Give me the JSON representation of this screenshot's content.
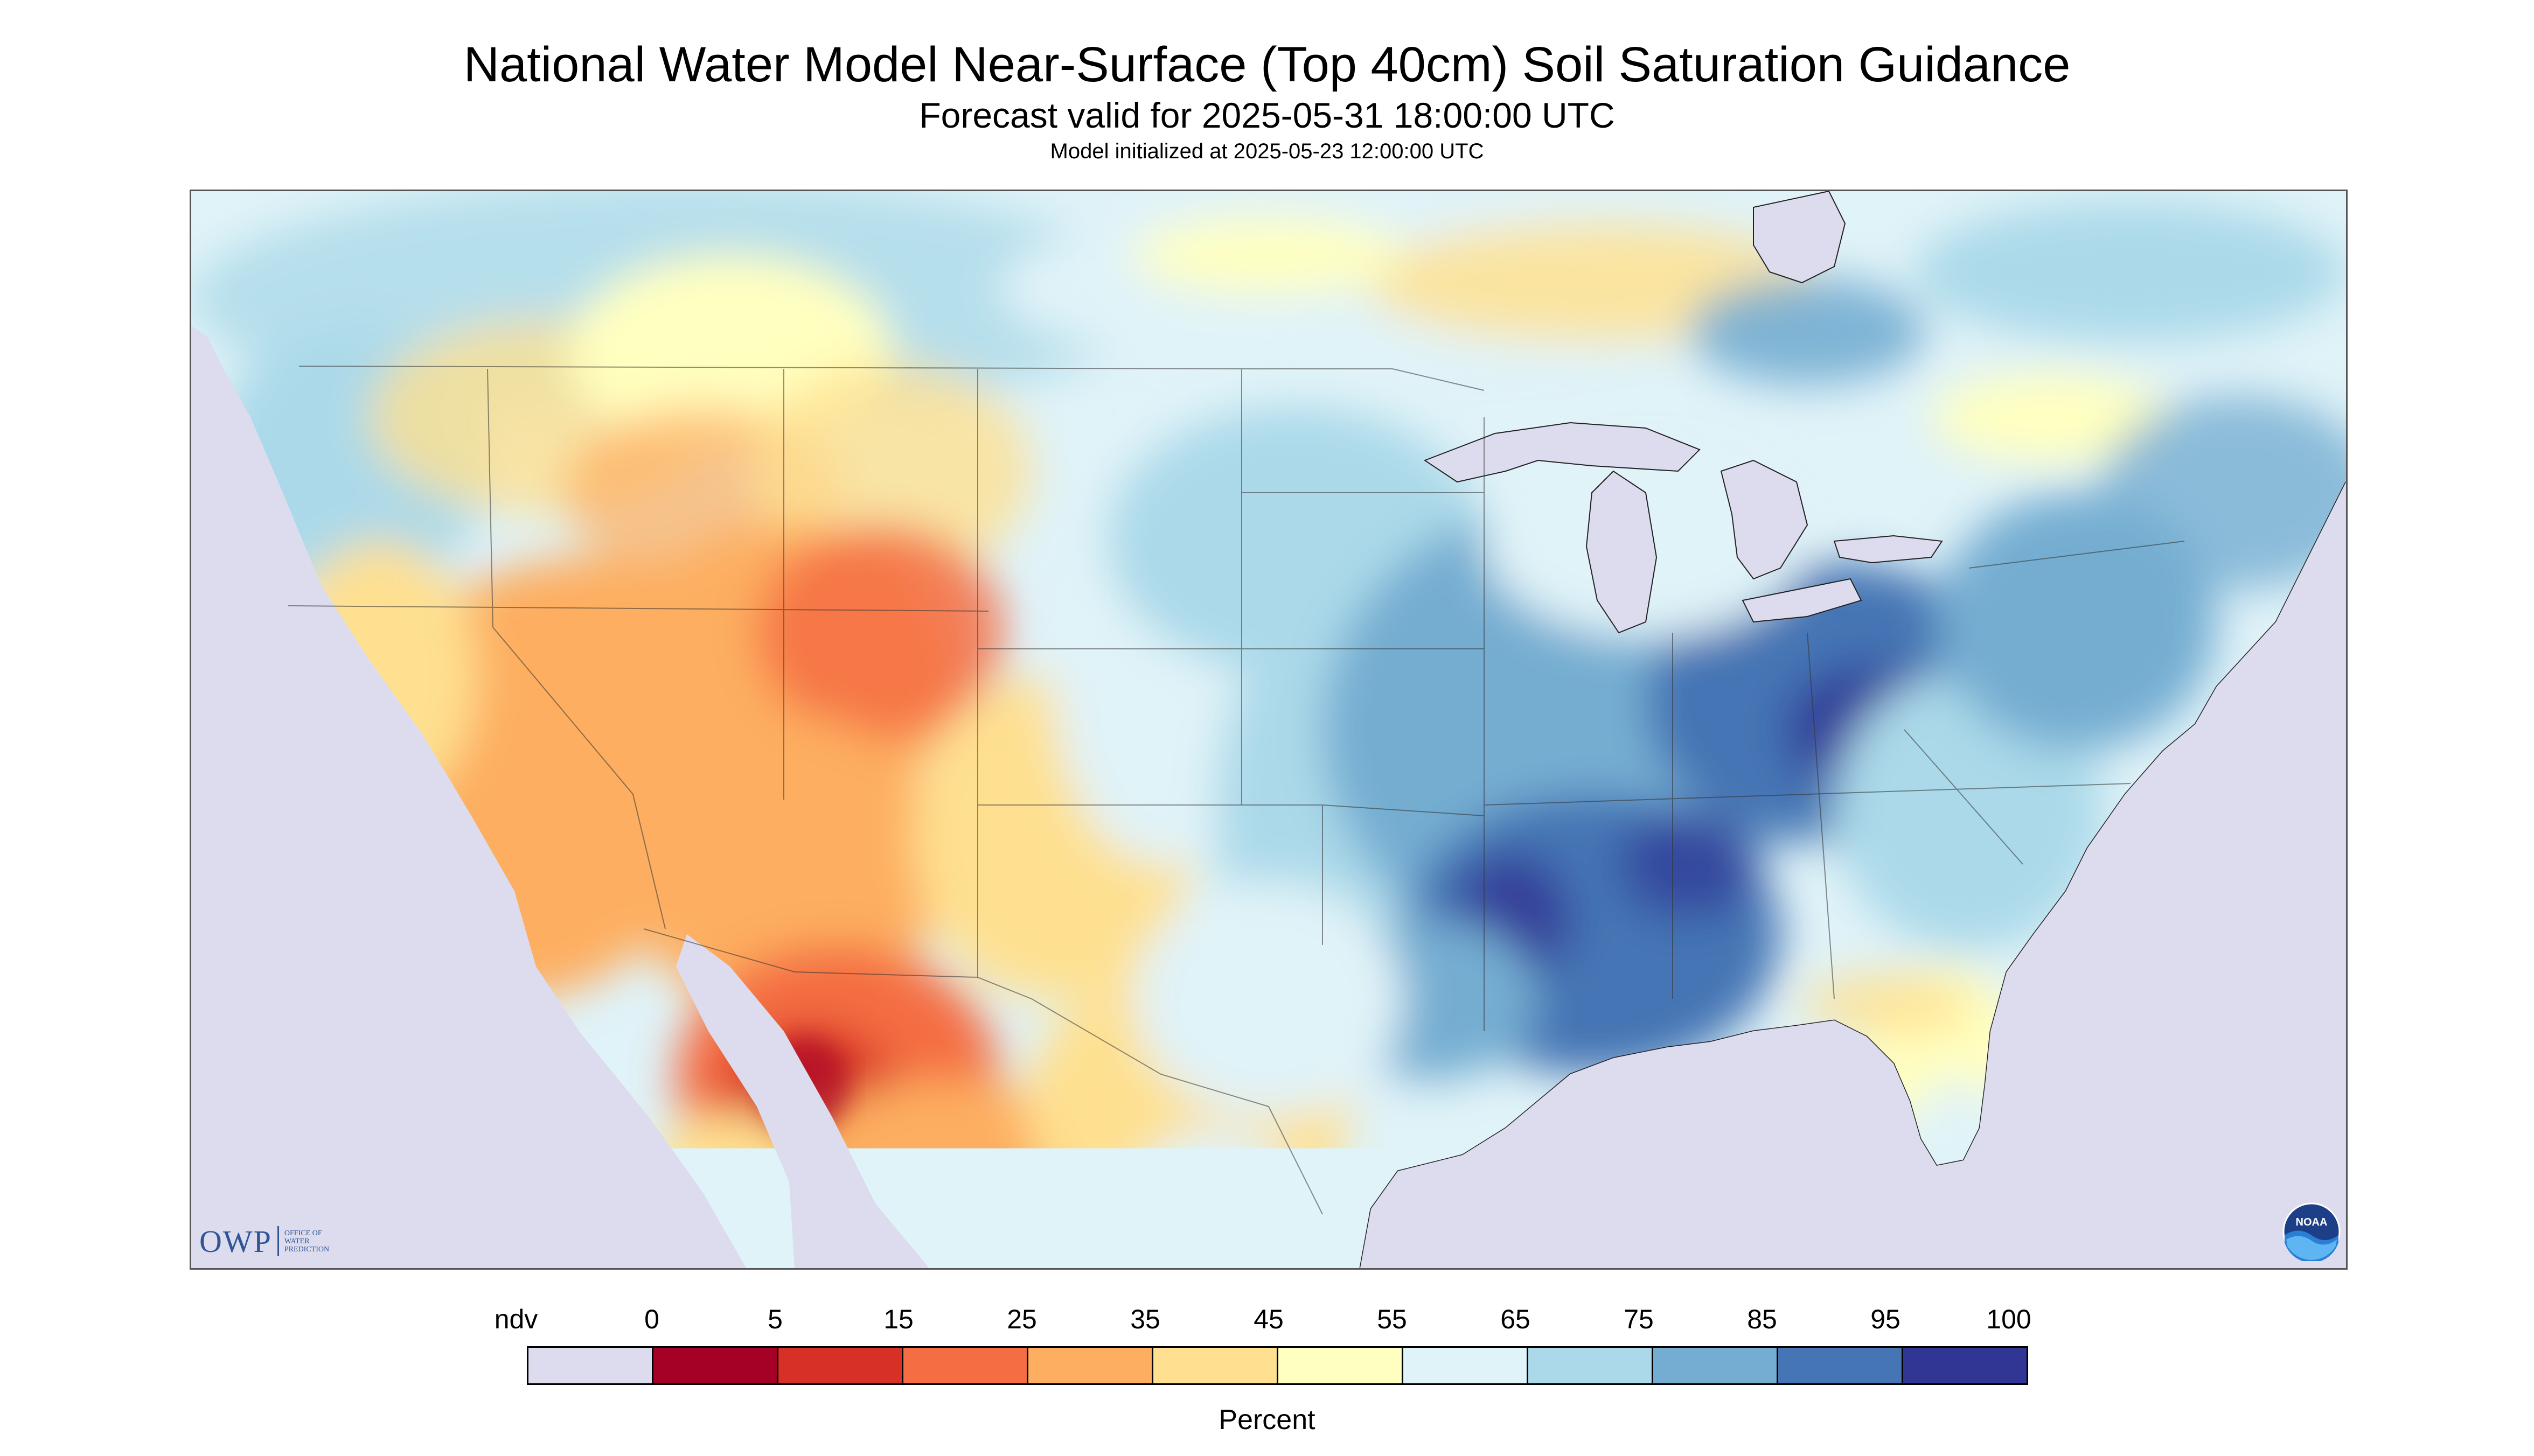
{
  "header": {
    "title": "National Water Model Near-Surface (Top 40cm) Soil Saturation Guidance",
    "subtitle": "Forecast valid for 2025-05-31 18:00:00 UTC",
    "init_line": "Model initialized at 2025-05-23 12:00:00 UTC"
  },
  "legend": {
    "title": "Percent",
    "labels": [
      "ndv",
      "0",
      "5",
      "15",
      "25",
      "35",
      "45",
      "55",
      "65",
      "75",
      "85",
      "95",
      "100"
    ],
    "colors": [
      "#dcdcee",
      "#a50026",
      "#d73027",
      "#f46d43",
      "#fdae61",
      "#fee090",
      "#ffffbf",
      "#e0f3f8",
      "#abd9e9",
      "#74add1",
      "#4575b4",
      "#313695"
    ]
  },
  "logos": {
    "owp_text": "OWP",
    "owp_sub": [
      "OFFICE OF",
      "WATER",
      "PREDICTION"
    ],
    "noaa_text": "NOAA"
  },
  "map": {
    "background_color": "#dcdcee",
    "regions": [
      {
        "name": "desert-southwest",
        "value": "5-35"
      },
      {
        "name": "northern-mexico",
        "value": "0-15"
      },
      {
        "name": "mississippi-valley",
        "value": "85-100"
      },
      {
        "name": "ohio-valley",
        "value": "85-100"
      },
      {
        "name": "canada-prairies",
        "value": "35-55"
      }
    ]
  }
}
